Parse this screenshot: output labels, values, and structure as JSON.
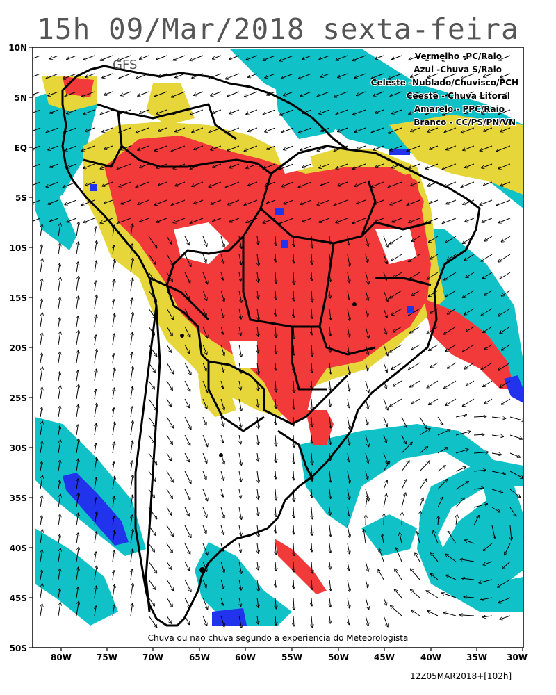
{
  "title": "15h 09/Mar/2018 sexta-feira",
  "model_label": "GFS",
  "legend": [
    {
      "text": "Vermelho  -PC/Raio",
      "color": "#f23a3a"
    },
    {
      "text": "Azul  -Chuva S/Raio",
      "color": "#2233ee"
    },
    {
      "text": "Celeste  -Nublado/Chuvisco/PCH",
      "color": "#10c2c8"
    },
    {
      "text": "Ceeste  - Chuva Litoral",
      "color": "#10c2c8"
    },
    {
      "text": "Amarelo  -  PPC/Raio",
      "color": "#e6d63a"
    },
    {
      "text": "Branco  -  CC/PS/PN/VN",
      "color": "#ffffff"
    }
  ],
  "bottom_note": "Chuva ou nao chuva segundo a experiencia do Meteorologista",
  "lat_labels": [
    "10N",
    "5N",
    "EQ",
    "5S",
    "10S",
    "15S",
    "20S",
    "25S",
    "30S",
    "35S",
    "40S",
    "45S",
    "50S"
  ],
  "lon_labels": [
    "80W",
    "75W",
    "70W",
    "65W",
    "60W",
    "55W",
    "50W",
    "45W",
    "40W",
    "35W",
    "30W"
  ],
  "footer": "12Z05MAR2018+[102h]",
  "colors": {
    "red": "#f23a3a",
    "yellow": "#e6d63a",
    "cyan": "#10c2c8",
    "blue": "#2233ee"
  }
}
